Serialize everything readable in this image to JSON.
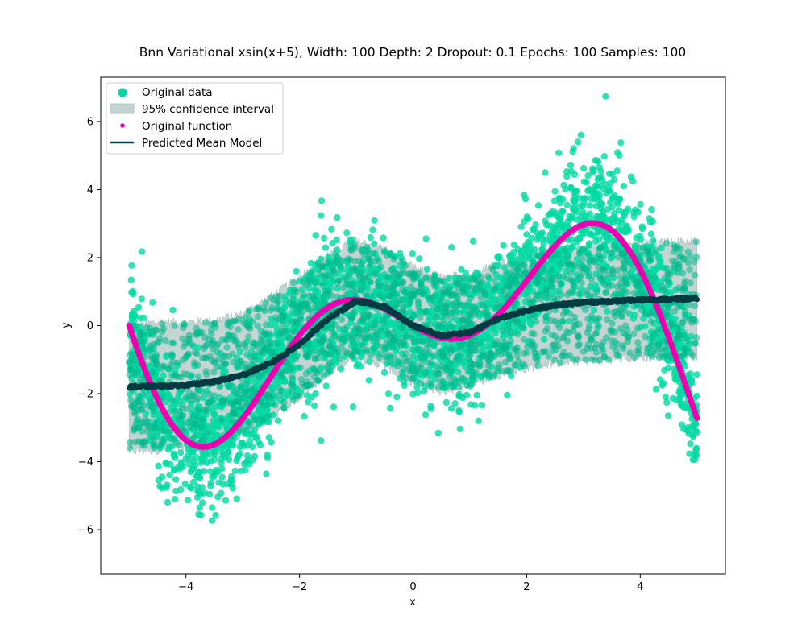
{
  "chart_data": {
    "type": "scatter",
    "title": "Bnn Variational xsin(x+5), Width: 100 Depth: 2 Dropout: 0.1 Epochs: 100 Samples: 100",
    "xlabel": "x",
    "ylabel": "y",
    "xlim": [
      -5.5,
      5.5
    ],
    "ylim": [
      -7.3,
      7.3
    ],
    "xticks": [
      -4,
      -2,
      0,
      2,
      4
    ],
    "yticks": [
      -6,
      -4,
      -2,
      0,
      2,
      4,
      6
    ],
    "grid": false,
    "legend_position": "top-left",
    "legend": [
      {
        "label": "Original data",
        "marker": "circle",
        "color": "#00d9a3"
      },
      {
        "label": "95% confidence interval",
        "marker": "patch",
        "color": "#c8d8d6"
      },
      {
        "label": "Original function",
        "marker": "dot",
        "color": "#ee00b0"
      },
      {
        "label": "Predicted Mean Model",
        "marker": "line",
        "color": "#003840"
      }
    ],
    "colors": {
      "data": "#00d9a3",
      "data_dense": "#00b88c",
      "band": "#c4d4d2",
      "band_edge": "#a8bebb",
      "function": "#ee00b0",
      "mean": "#003a42"
    },
    "original_function": {
      "x": [
        -5,
        -4.5,
        -4,
        -3.75,
        -3.5,
        -3,
        -2.5,
        -2,
        -1.5,
        -1,
        -0.5,
        0,
        0.5,
        1,
        1.5,
        2,
        2.5,
        3,
        3.25,
        3.5,
        4,
        4.5,
        5
      ],
      "y": [
        0,
        -2.16,
        -3.37,
        -3.58,
        -3.35,
        -1.94,
        -0.37,
        0.65,
        0.53,
        0.76,
        0.49,
        0.0,
        -0.36,
        -0.28,
        0.31,
        1.31,
        2.4,
        2.97,
        2.99,
        2.85,
        1.64,
        -0.42,
        -2.72
      ]
    },
    "predicted_mean": {
      "x": [
        -5,
        -4.5,
        -4,
        -3.5,
        -3,
        -2.5,
        -2,
        -1.5,
        -1,
        -0.5,
        0,
        0.5,
        1,
        1.5,
        2,
        2.5,
        3,
        3.5,
        4,
        4.5,
        5
      ],
      "y": [
        -1.8,
        -1.78,
        -1.75,
        -1.65,
        -1.45,
        -1.1,
        -0.55,
        0.2,
        0.72,
        0.55,
        0.0,
        -0.3,
        -0.2,
        0.2,
        0.45,
        0.6,
        0.68,
        0.72,
        0.75,
        0.77,
        0.8
      ]
    },
    "confidence_interval": {
      "x": [
        -5,
        -4.5,
        -4,
        -3.5,
        -3,
        -2.5,
        -2,
        -1.5,
        -1,
        -0.5,
        0,
        0.5,
        1,
        1.5,
        2,
        2.5,
        3,
        3.5,
        4,
        4.5,
        5
      ],
      "lower": [
        -3.7,
        -3.65,
        -3.6,
        -3.45,
        -3.2,
        -2.7,
        -2.1,
        -1.4,
        -0.9,
        -1.2,
        -1.7,
        -1.95,
        -1.75,
        -1.45,
        -1.25,
        -1.1,
        -1.05,
        -1.0,
        -0.95,
        -0.95,
        -0.9
      ],
      "upper": [
        0.0,
        0.1,
        0.1,
        0.15,
        0.35,
        0.85,
        1.45,
        2.1,
        2.5,
        2.25,
        1.7,
        1.4,
        1.5,
        1.85,
        2.05,
        2.2,
        2.3,
        2.35,
        2.4,
        2.45,
        2.5
      ]
    },
    "original_data": {
      "description_of_noise_std": 1.0,
      "x_range": [
        -5,
        5
      ],
      "n_points_approx": 2500
    }
  }
}
